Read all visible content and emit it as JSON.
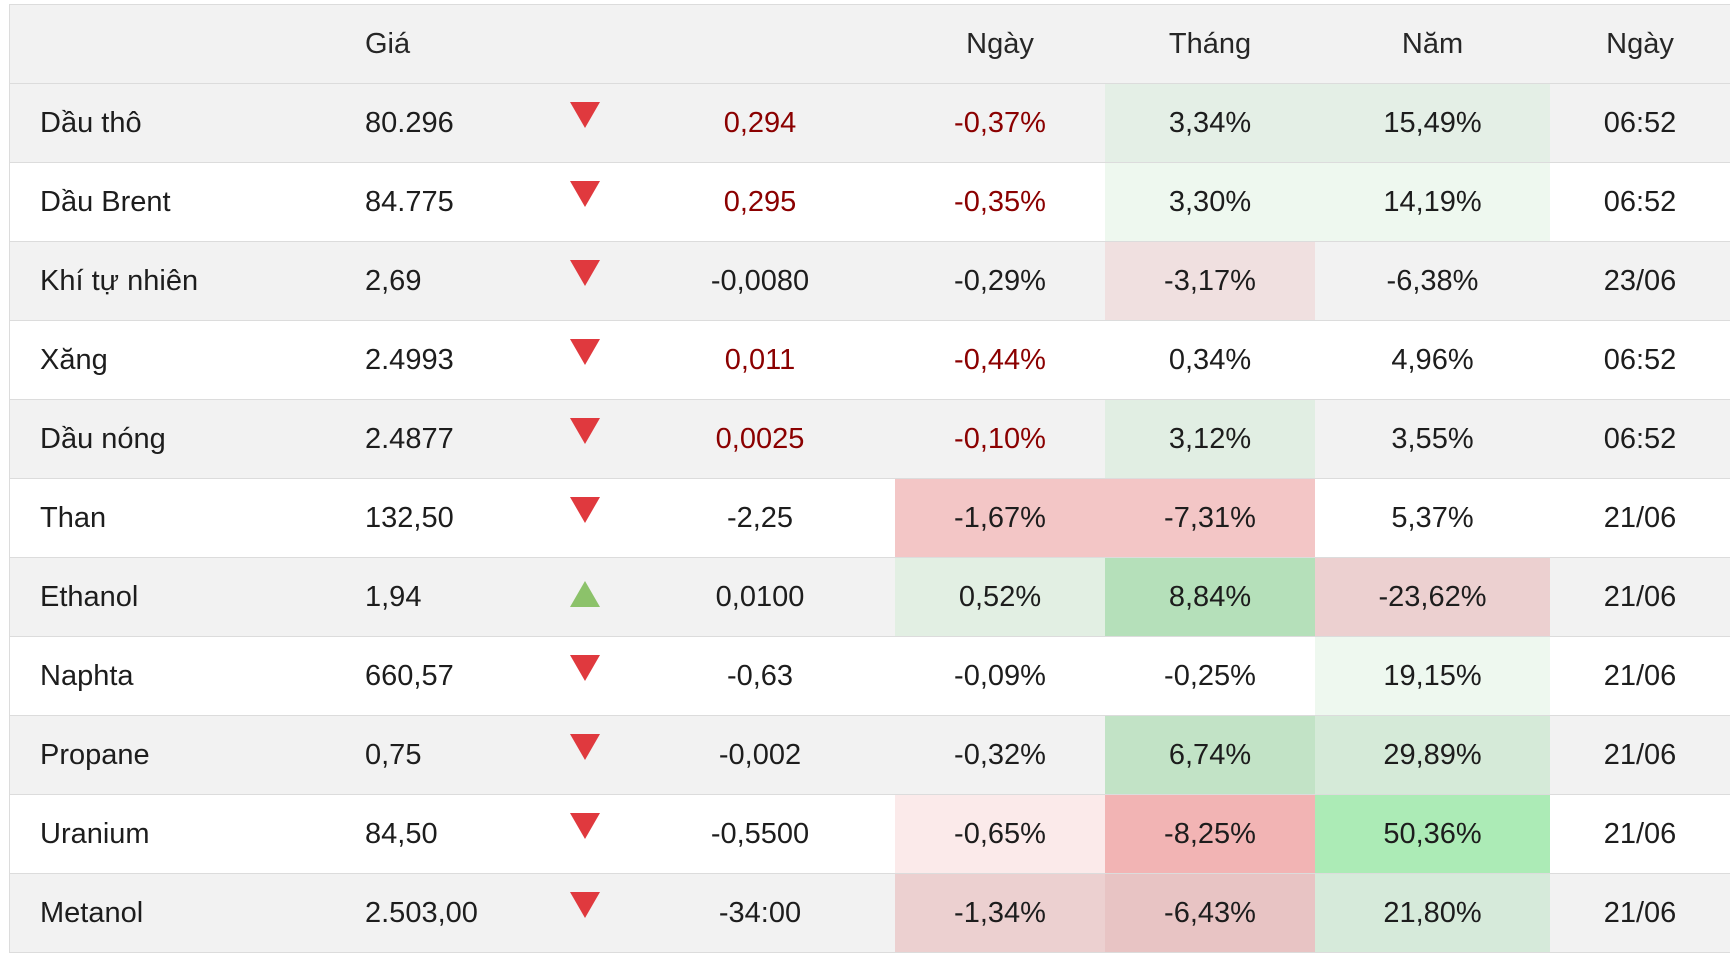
{
  "headers": {
    "name": "",
    "price": "Giá",
    "direction": "",
    "change": "",
    "day": "Ngày",
    "month": "Tháng",
    "year": "Năm",
    "time": "Ngày"
  },
  "colors": {
    "negative_text": "#8b0000",
    "arrow_down": "#e0393e",
    "arrow_up": "#8cc26a",
    "row_alt": "#f2f2f2"
  },
  "rows": [
    {
      "name": "Dầu thô",
      "price": "80.296",
      "direction": "down",
      "change": "0,294",
      "change_neg": true,
      "day": "-0,37%",
      "day_neg": true,
      "month": "3,34%",
      "year": "15,49%",
      "time": "06:52",
      "bg": {
        "day": null,
        "month": "#e4efe6",
        "year": "#e4efe6"
      }
    },
    {
      "name": "Dầu Brent",
      "price": "84.775",
      "direction": "down",
      "change": "0,295",
      "change_neg": true,
      "day": "-0,35%",
      "day_neg": true,
      "month": "3,30%",
      "year": "14,19%",
      "time": "06:52",
      "bg": {
        "day": null,
        "month": "#eef8ef",
        "year": "#eef8ef"
      }
    },
    {
      "name": "Khí tự nhiên",
      "price": "2,69",
      "direction": "down",
      "change": "-0,0080",
      "change_neg": false,
      "day": "-0,29%",
      "day_neg": false,
      "month": "-3,17%",
      "year": "-6,38%",
      "time": "23/06",
      "bg": {
        "day": null,
        "month": "#f0e0e0",
        "year": null
      }
    },
    {
      "name": "Xăng",
      "price": "2.4993",
      "direction": "down",
      "change": "0,011",
      "change_neg": true,
      "day": "-0,44%",
      "day_neg": true,
      "month": "0,34%",
      "year": "4,96%",
      "time": "06:52",
      "bg": {
        "day": null,
        "month": null,
        "year": null
      }
    },
    {
      "name": "Dầu nóng",
      "price": "2.4877",
      "direction": "down",
      "change": "0,0025",
      "change_neg": true,
      "day": "-0,10%",
      "day_neg": true,
      "month": "3,12%",
      "year": "3,55%",
      "time": "06:52",
      "bg": {
        "day": null,
        "month": "#e1eee3",
        "year": null
      }
    },
    {
      "name": "Than",
      "price": "132,50",
      "direction": "down",
      "change": "-2,25",
      "change_neg": false,
      "day": "-1,67%",
      "day_neg": false,
      "month": "-7,31%",
      "year": "5,37%",
      "time": "21/06",
      "bg": {
        "day": "#f3c6c6",
        "month": "#f3c6c6",
        "year": null
      }
    },
    {
      "name": "Ethanol",
      "price": "1,94",
      "direction": "up",
      "change": "0,0100",
      "change_neg": false,
      "day": "0,52%",
      "day_neg": false,
      "month": "8,84%",
      "year": "-23,62%",
      "time": "21/06",
      "bg": {
        "day": "#e2efe3",
        "month": "#b5e0ba",
        "year": "#ecd0d0"
      }
    },
    {
      "name": "Naphta",
      "price": "660,57",
      "direction": "down",
      "change": "-0,63",
      "change_neg": false,
      "day": "-0,09%",
      "day_neg": false,
      "month": "-0,25%",
      "year": "19,15%",
      "time": "21/06",
      "bg": {
        "day": null,
        "month": null,
        "year": "#eef8ef"
      }
    },
    {
      "name": "Propane",
      "price": "0,75",
      "direction": "down",
      "change": "-0,002",
      "change_neg": false,
      "day": "-0,32%",
      "day_neg": false,
      "month": "6,74%",
      "year": "29,89%",
      "time": "21/06",
      "bg": {
        "day": null,
        "month": "#c2e3c6",
        "year": "#d5ead8"
      }
    },
    {
      "name": "Uranium",
      "price": "84,50",
      "direction": "down",
      "change": "-0,5500",
      "change_neg": false,
      "day": "-0,65%",
      "day_neg": false,
      "month": "-8,25%",
      "year": "50,36%",
      "time": "21/06",
      "bg": {
        "day": "#fbeaea",
        "month": "#f2b4b4",
        "year": "#acebb6"
      }
    },
    {
      "name": "Metanol",
      "price": "2.503,00",
      "direction": "down",
      "change": "-34:00",
      "change_neg": false,
      "day": "-1,34%",
      "day_neg": false,
      "month": "-6,43%",
      "year": "21,80%",
      "time": "21/06",
      "bg": {
        "day": "#ecd0d0",
        "month": "#e8c4c4",
        "year": "#d6eada"
      }
    }
  ]
}
